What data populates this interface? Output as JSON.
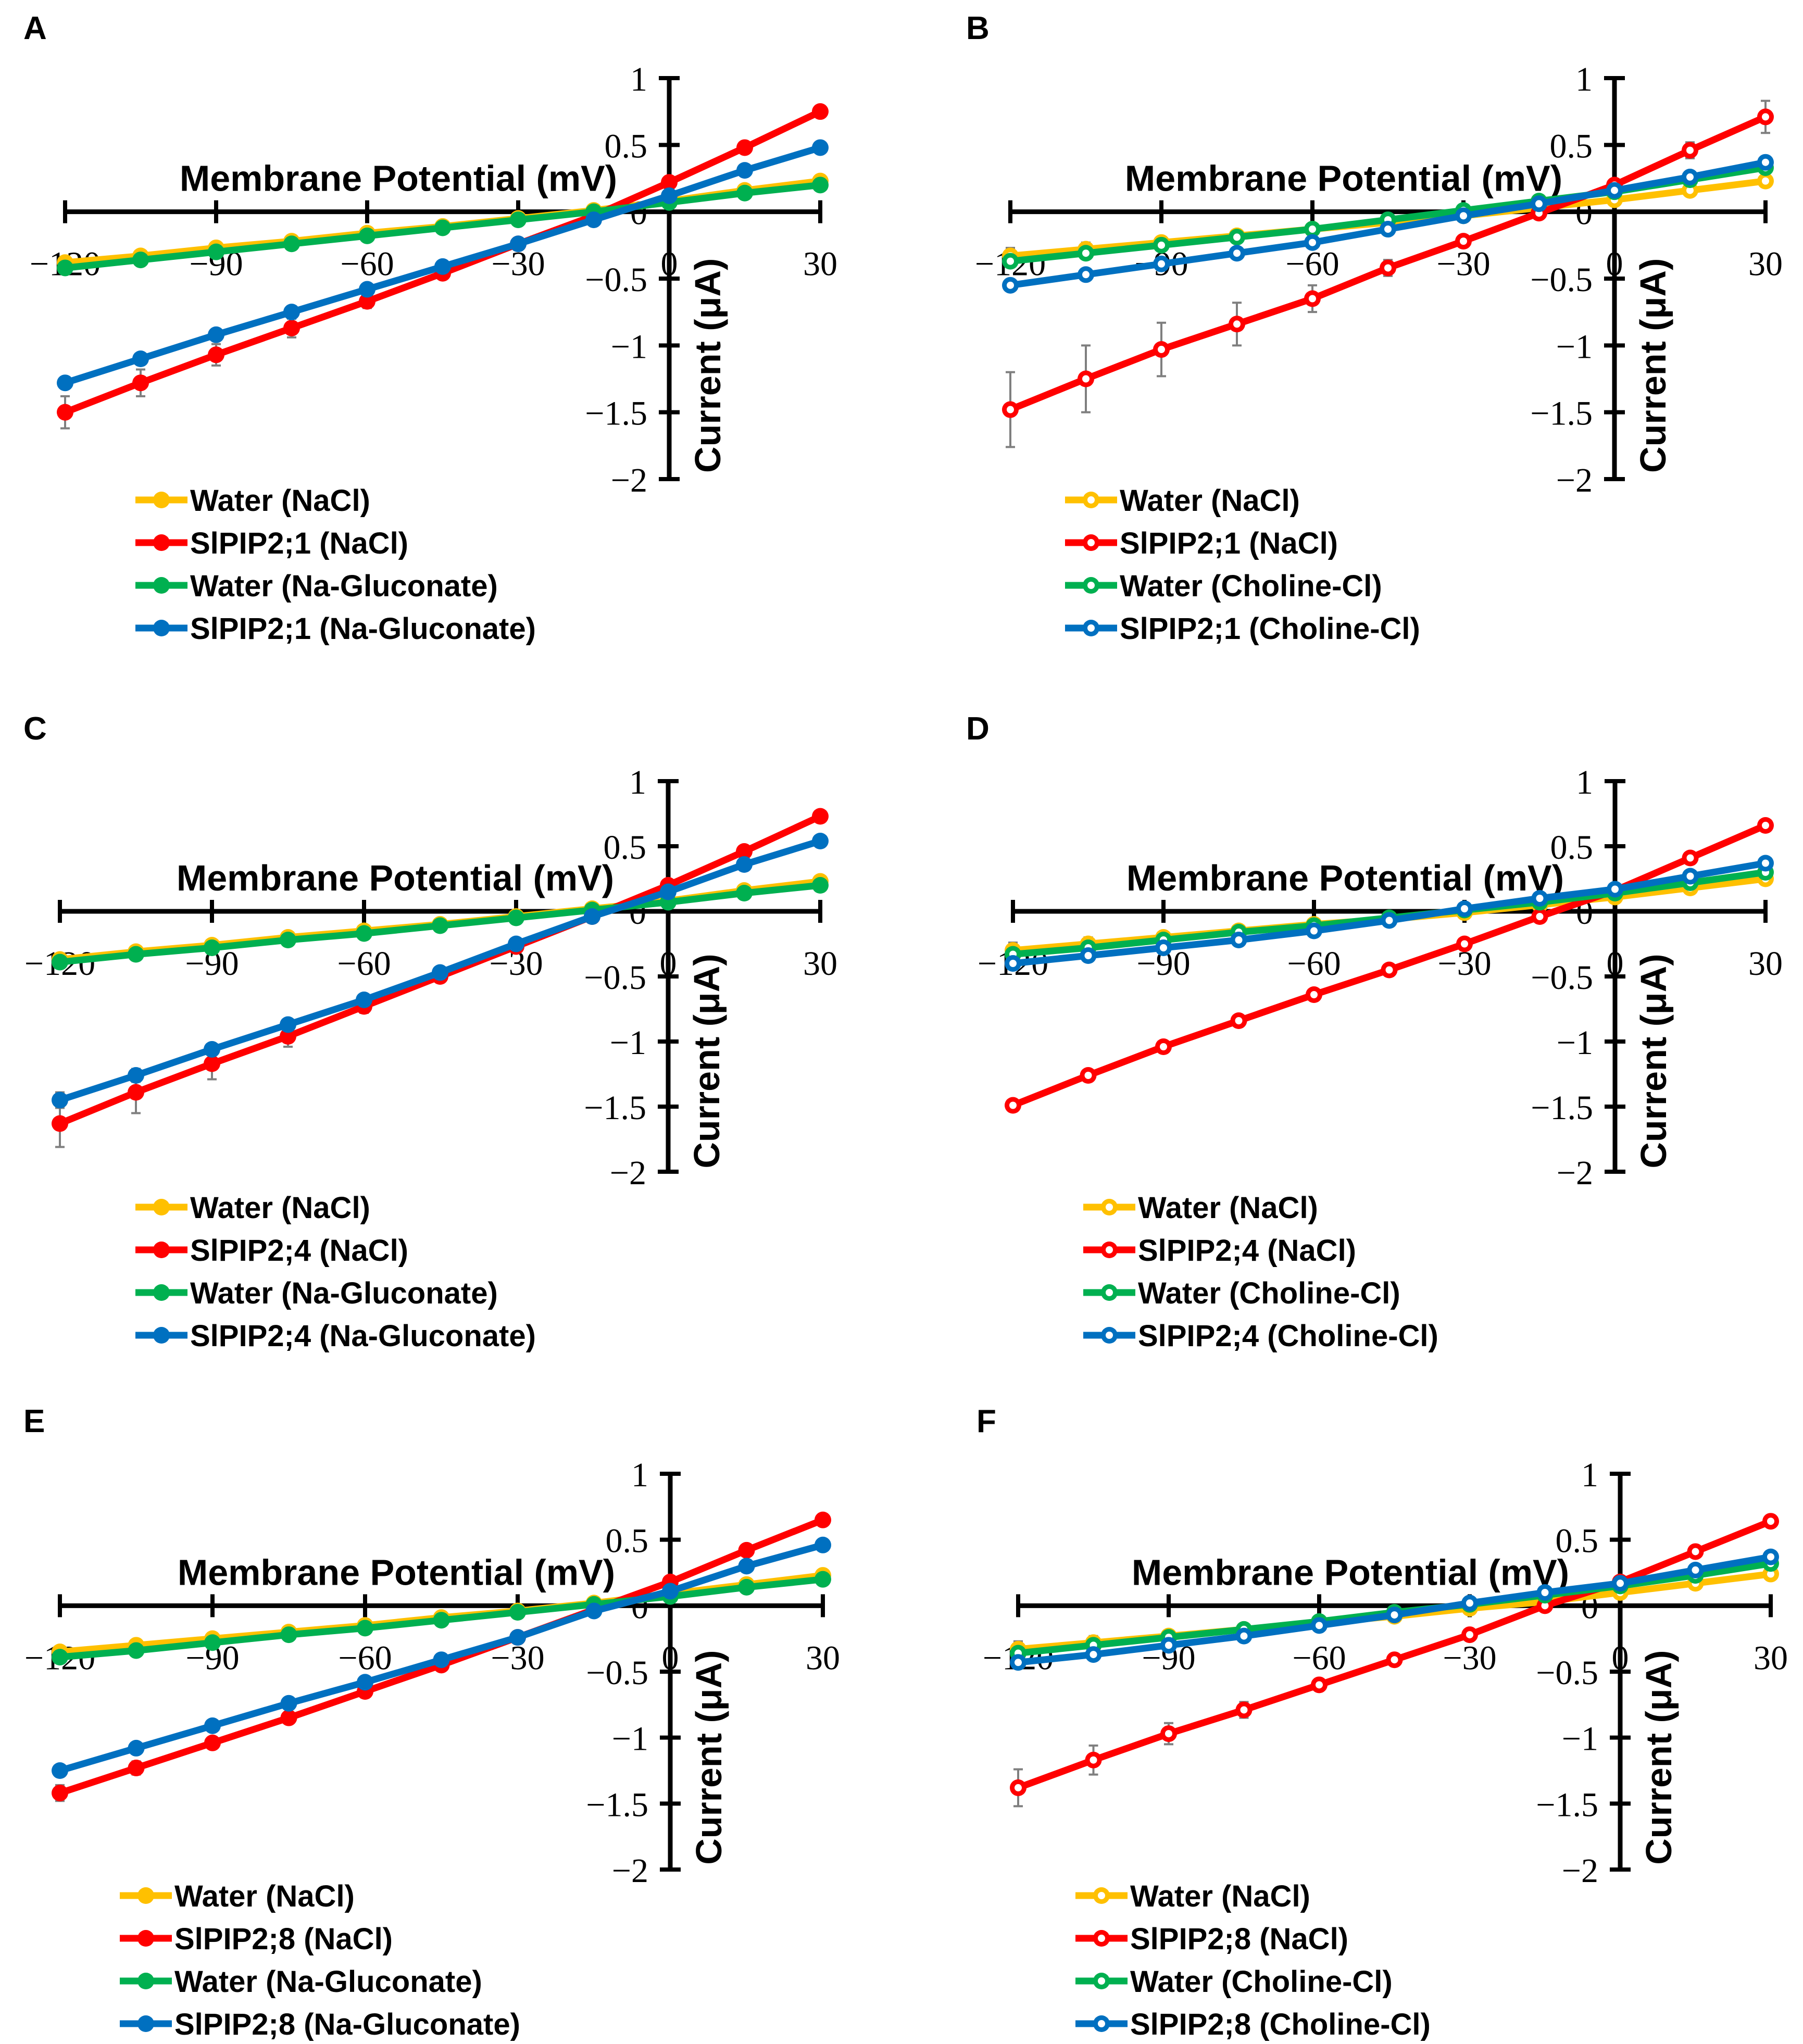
{
  "figure": {
    "panels": [
      "A",
      "B",
      "C",
      "D",
      "E",
      "F"
    ]
  },
  "colors": {
    "water_nacl": "#FFC000",
    "pip_nacl": "#FF0000",
    "water_alt": "#00B050",
    "pip_alt": "#0070C0",
    "axis": "#000000",
    "error_bar": "#7F7F7F"
  },
  "chart_data": [
    {
      "panel": "A",
      "type": "line",
      "xlabel": "Membrane Potential (mV)",
      "ylabel": "Current (μA)",
      "xlim": [
        -120,
        30
      ],
      "ylim": [
        -2,
        1
      ],
      "xticks": [
        "−120",
        "−90",
        "−60",
        "−30",
        "0",
        "30"
      ],
      "yticks": [
        "1",
        "0.5",
        "0",
        "−0.5",
        "−1",
        "−1.5",
        "−2"
      ],
      "x": [
        -120,
        -105,
        -90,
        -75,
        -60,
        -45,
        -30,
        -15,
        0,
        15,
        30
      ],
      "series": [
        {
          "name": "Water (NaCl)",
          "color_key": "water_nacl",
          "marker": "filled",
          "values": [
            -0.38,
            -0.33,
            -0.27,
            -0.22,
            -0.16,
            -0.11,
            -0.05,
            0.01,
            0.08,
            0.16,
            0.23
          ]
        },
        {
          "name": "SlPIP2;1 (NaCl)",
          "color_key": "pip_nacl",
          "marker": "filled",
          "values": [
            -1.5,
            -1.28,
            -1.07,
            -0.87,
            -0.67,
            -0.46,
            -0.24,
            -0.03,
            0.22,
            0.48,
            0.75
          ],
          "errors": [
            0.12,
            0.1,
            0.08,
            0.07,
            0.05,
            0.03,
            0.02,
            0.01,
            0.02,
            0.03,
            0.03
          ]
        },
        {
          "name": "Water (Na-Gluconate)",
          "color_key": "water_alt",
          "marker": "filled",
          "values": [
            -0.42,
            -0.36,
            -0.3,
            -0.24,
            -0.18,
            -0.12,
            -0.06,
            0.0,
            0.07,
            0.14,
            0.2
          ]
        },
        {
          "name": "SlPIP2;1 (Na-Gluconate)",
          "color_key": "pip_alt",
          "marker": "filled",
          "values": [
            -1.28,
            -1.1,
            -0.92,
            -0.75,
            -0.58,
            -0.41,
            -0.24,
            -0.06,
            0.12,
            0.31,
            0.48
          ]
        }
      ]
    },
    {
      "panel": "B",
      "type": "line",
      "xlabel": "Membrane Potential (mV)",
      "ylabel": "Current (μA)",
      "xlim": [
        -120,
        30
      ],
      "ylim": [
        -2,
        1
      ],
      "xticks": [
        "−120",
        "−90",
        "−60",
        "−30",
        "0",
        "30"
      ],
      "yticks": [
        "1",
        "0.5",
        "0",
        "−0.5",
        "−1",
        "−1.5",
        "−2"
      ],
      "x": [
        -120,
        -105,
        -90,
        -75,
        -60,
        -45,
        -30,
        -15,
        0,
        15,
        30
      ],
      "series": [
        {
          "name": "Water (NaCl)",
          "color_key": "water_nacl",
          "marker": "hollow",
          "values": [
            -0.33,
            -0.28,
            -0.23,
            -0.18,
            -0.13,
            -0.08,
            -0.03,
            0.03,
            0.09,
            0.16,
            0.23
          ],
          "errors": [
            0.06,
            0.05,
            0.04,
            0.03,
            0.02,
            0.02,
            0.01,
            0.01,
            0.01,
            0.02,
            0.02
          ]
        },
        {
          "name": "SlPIP2;1 (NaCl)",
          "color_key": "pip_nacl",
          "marker": "hollow",
          "values": [
            -1.48,
            -1.25,
            -1.03,
            -0.84,
            -0.65,
            -0.42,
            -0.22,
            -0.01,
            0.2,
            0.46,
            0.71
          ],
          "errors": [
            0.28,
            0.25,
            0.2,
            0.16,
            0.1,
            0.06,
            0.03,
            0.02,
            0.02,
            0.06,
            0.12
          ]
        },
        {
          "name": "Water (Choline-Cl)",
          "color_key": "water_alt",
          "marker": "hollow",
          "values": [
            -0.37,
            -0.31,
            -0.25,
            -0.19,
            -0.13,
            -0.06,
            0.01,
            0.08,
            0.15,
            0.24,
            0.33
          ]
        },
        {
          "name": "SlPIP2;1 (Choline-Cl)",
          "color_key": "pip_alt",
          "marker": "hollow",
          "values": [
            -0.55,
            -0.47,
            -0.39,
            -0.31,
            -0.23,
            -0.13,
            -0.03,
            0.06,
            0.16,
            0.26,
            0.37
          ]
        }
      ]
    },
    {
      "panel": "C",
      "type": "line",
      "xlabel": "Membrane Potential (mV)",
      "ylabel": "Current (μA)",
      "xlim": [
        -120,
        30
      ],
      "ylim": [
        -2,
        1
      ],
      "xticks": [
        "−120",
        "−90",
        "−60",
        "−30",
        "0",
        "30"
      ],
      "yticks": [
        "1",
        "0.5",
        "0",
        "−0.5",
        "−1",
        "−1.5",
        "−2"
      ],
      "x": [
        -120,
        -105,
        -90,
        -75,
        -60,
        -45,
        -30,
        -15,
        0,
        15,
        30
      ],
      "series": [
        {
          "name": "Water (NaCl)",
          "color_key": "water_nacl",
          "marker": "filled",
          "values": [
            -0.37,
            -0.31,
            -0.26,
            -0.2,
            -0.15,
            -0.1,
            -0.04,
            0.02,
            0.08,
            0.16,
            0.23
          ]
        },
        {
          "name": "SlPIP2;4 (NaCl)",
          "color_key": "pip_nacl",
          "marker": "filled",
          "values": [
            -1.63,
            -1.39,
            -1.17,
            -0.96,
            -0.73,
            -0.5,
            -0.27,
            -0.04,
            0.2,
            0.46,
            0.73
          ],
          "errors": [
            0.18,
            0.16,
            0.12,
            0.08,
            0.05,
            0.03,
            0.02,
            0.01,
            0.02,
            0.03,
            0.04
          ]
        },
        {
          "name": "Water (Na-Gluconate)",
          "color_key": "water_alt",
          "marker": "filled",
          "values": [
            -0.39,
            -0.33,
            -0.28,
            -0.22,
            -0.17,
            -0.11,
            -0.05,
            0.01,
            0.07,
            0.14,
            0.2
          ]
        },
        {
          "name": "SlPIP2;4 (Na-Gluconate)",
          "color_key": "pip_alt",
          "marker": "filled",
          "values": [
            -1.45,
            -1.26,
            -1.06,
            -0.87,
            -0.68,
            -0.47,
            -0.25,
            -0.04,
            0.15,
            0.36,
            0.54
          ],
          "errors": [
            0.06,
            0.05,
            0.04,
            0.03,
            0.02,
            0.02,
            0.01,
            0.01,
            0.01,
            0.02,
            0.02
          ]
        }
      ]
    },
    {
      "panel": "D",
      "type": "line",
      "xlabel": "Membrane Potential (mV)",
      "ylabel": "Current (μA)",
      "xlim": [
        -120,
        30
      ],
      "ylim": [
        -2,
        1
      ],
      "xticks": [
        "−120",
        "−90",
        "−60",
        "−30",
        "0",
        "30"
      ],
      "yticks": [
        "1",
        "0.5",
        "0",
        "−0.5",
        "−1",
        "−1.5",
        "−2"
      ],
      "x": [
        -120,
        -105,
        -90,
        -75,
        -60,
        -45,
        -30,
        -15,
        0,
        15,
        30
      ],
      "series": [
        {
          "name": "Water (NaCl)",
          "color_key": "water_nacl",
          "marker": "hollow",
          "values": [
            -0.3,
            -0.25,
            -0.2,
            -0.15,
            -0.1,
            -0.06,
            -0.01,
            0.05,
            0.11,
            0.18,
            0.25
          ],
          "errors": [
            0.06,
            0.05,
            0.04,
            0.03,
            0.02,
            0.02,
            0.01,
            0.01,
            0.01,
            0.02,
            0.02
          ]
        },
        {
          "name": "SlPIP2;4 (NaCl)",
          "color_key": "pip_nacl",
          "marker": "hollow",
          "values": [
            -1.49,
            -1.26,
            -1.04,
            -0.84,
            -0.64,
            -0.45,
            -0.25,
            -0.04,
            0.16,
            0.41,
            0.66
          ]
        },
        {
          "name": "Water (Choline-Cl)",
          "color_key": "water_alt",
          "marker": "hollow",
          "values": [
            -0.33,
            -0.28,
            -0.22,
            -0.16,
            -0.11,
            -0.05,
            0.01,
            0.07,
            0.14,
            0.22,
            0.3
          ]
        },
        {
          "name": "SlPIP2;4 (Choline-Cl)",
          "color_key": "pip_alt",
          "marker": "hollow",
          "values": [
            -0.4,
            -0.34,
            -0.28,
            -0.22,
            -0.15,
            -0.07,
            0.02,
            0.1,
            0.17,
            0.27,
            0.37
          ]
        }
      ]
    },
    {
      "panel": "E",
      "type": "line",
      "xlabel": "Membrane Potential (mV)",
      "ylabel": "Current (μA)",
      "xlim": [
        -120,
        30
      ],
      "ylim": [
        -2,
        1
      ],
      "xticks": [
        "−120",
        "−90",
        "−60",
        "−30",
        "0",
        "30"
      ],
      "yticks": [
        "1",
        "0.5",
        "0",
        "−0.5",
        "−1",
        "−1.5",
        "−2"
      ],
      "x": [
        -120,
        -105,
        -90,
        -75,
        -60,
        -45,
        -30,
        -15,
        0,
        15,
        30
      ],
      "series": [
        {
          "name": "Water (NaCl)",
          "color_key": "water_nacl",
          "marker": "filled",
          "values": [
            -0.35,
            -0.3,
            -0.25,
            -0.2,
            -0.15,
            -0.09,
            -0.04,
            0.02,
            0.09,
            0.16,
            0.23
          ]
        },
        {
          "name": "SlPIP2;8 (NaCl)",
          "color_key": "pip_nacl",
          "marker": "filled",
          "values": [
            -1.42,
            -1.23,
            -1.04,
            -0.85,
            -0.65,
            -0.45,
            -0.24,
            -0.03,
            0.18,
            0.42,
            0.65
          ],
          "errors": [
            0.06,
            0.05,
            0.04,
            0.03,
            0.02,
            0.02,
            0.01,
            0.01,
            0.02,
            0.02,
            0.03
          ]
        },
        {
          "name": "Water (Na-Gluconate)",
          "color_key": "water_alt",
          "marker": "filled",
          "values": [
            -0.39,
            -0.34,
            -0.28,
            -0.22,
            -0.17,
            -0.11,
            -0.05,
            0.01,
            0.07,
            0.14,
            0.2
          ]
        },
        {
          "name": "SlPIP2;8 (Na-Gluconate)",
          "color_key": "pip_alt",
          "marker": "filled",
          "values": [
            -1.25,
            -1.08,
            -0.91,
            -0.74,
            -0.58,
            -0.41,
            -0.24,
            -0.04,
            0.11,
            0.3,
            0.46
          ]
        }
      ]
    },
    {
      "panel": "F",
      "type": "line",
      "xlabel": "Membrane Potential (mV)",
      "ylabel": "Current (μA)",
      "xlim": [
        -120,
        30
      ],
      "ylim": [
        -2,
        1
      ],
      "xticks": [
        "−120",
        "−90",
        "−60",
        "−30",
        "0",
        "30"
      ],
      "yticks": [
        "1",
        "0.5",
        "0",
        "−0.5",
        "−1",
        "−1.5",
        "−2"
      ],
      "x": [
        -120,
        -105,
        -90,
        -75,
        -60,
        -45,
        -30,
        -15,
        0,
        15,
        30
      ],
      "series": [
        {
          "name": "Water (NaCl)",
          "color_key": "water_nacl",
          "marker": "hollow",
          "values": [
            -0.33,
            -0.28,
            -0.23,
            -0.18,
            -0.13,
            -0.08,
            -0.02,
            0.03,
            0.1,
            0.17,
            0.24
          ],
          "errors": [
            0.06,
            0.05,
            0.04,
            0.03,
            0.02,
            0.02,
            0.01,
            0.01,
            0.01,
            0.02,
            0.02
          ]
        },
        {
          "name": "SlPIP2;8 (NaCl)",
          "color_key": "pip_nacl",
          "marker": "hollow",
          "values": [
            -1.38,
            -1.17,
            -0.97,
            -0.79,
            -0.6,
            -0.41,
            -0.22,
            0.0,
            0.18,
            0.41,
            0.64
          ],
          "errors": [
            0.14,
            0.11,
            0.08,
            0.06,
            0.04,
            0.03,
            0.02,
            0.01,
            0.02,
            0.02,
            0.03
          ]
        },
        {
          "name": "Water (Choline-Cl)",
          "color_key": "water_alt",
          "marker": "hollow",
          "values": [
            -0.36,
            -0.3,
            -0.24,
            -0.18,
            -0.12,
            -0.05,
            0.01,
            0.08,
            0.15,
            0.23,
            0.32
          ]
        },
        {
          "name": "SlPIP2;8 (Choline-Cl)",
          "color_key": "pip_alt",
          "marker": "hollow",
          "values": [
            -0.43,
            -0.37,
            -0.3,
            -0.23,
            -0.15,
            -0.07,
            0.02,
            0.1,
            0.17,
            0.27,
            0.37
          ]
        }
      ]
    }
  ]
}
